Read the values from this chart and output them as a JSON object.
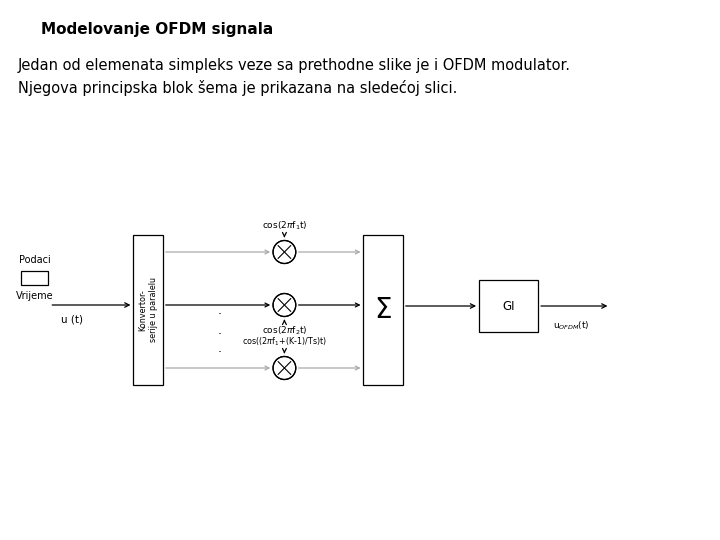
{
  "title": "Modelovanje OFDM signala",
  "title_bold": true,
  "title_fontsize": 11,
  "text_paragraph": "Jedan od elemenata simpleks veze sa prethodne slike je i OFDM modulator.\nNjegova principska blok šema je prikazana na sledećoj slici.",
  "para_fontsize": 10.5,
  "bg_color": "#ffffff",
  "diagram": {
    "input_signal_label": "Podaci",
    "input_time_label": "Vrijeme",
    "input_label": "u (t)",
    "converter_label1": "Konvertor-",
    "converter_label2": "serije u paralelu",
    "cos1": "cos(2πf₁t)",
    "cos2": "cos(2πf₂t)",
    "cos3": "cos((2πf₁+(K-1)/Ts)t)",
    "sum_symbol": "Σ",
    "gi_label": "GI",
    "output_label": "u₆ⁱⁱₘ(t)",
    "dots": ".\n.\n."
  }
}
